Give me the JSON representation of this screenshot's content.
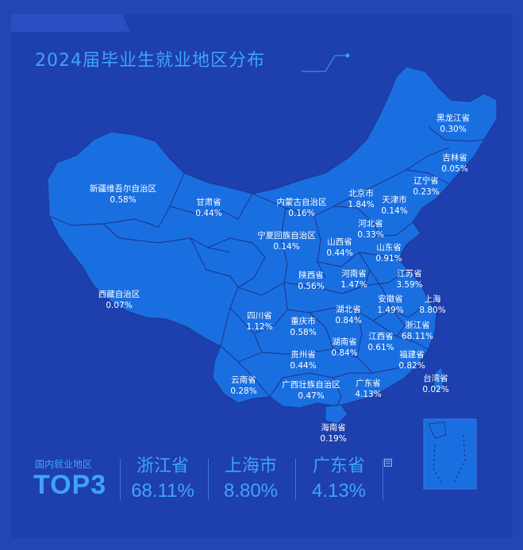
{
  "title": "2024届毕业生就业地区分布",
  "colors": {
    "background": "#2346b4",
    "panel": "#1e3fae",
    "land": "#1a6fe0",
    "border": "#1b3c9a",
    "accent": "#3fa2ff",
    "label": "#ffffff"
  },
  "regions": [
    {
      "name": "黑龙江省",
      "value": "0.30%"
    },
    {
      "name": "吉林省",
      "value": "0.05%"
    },
    {
      "name": "辽宁省",
      "value": "0.23%"
    },
    {
      "name": "新疆维吾尔自治区",
      "value": "0.58%"
    },
    {
      "name": "甘肃省",
      "value": "0.44%"
    },
    {
      "name": "内蒙古自治区",
      "value": "0.16%"
    },
    {
      "name": "北京市",
      "value": "1.84%"
    },
    {
      "name": "天津市",
      "value": "0.14%"
    },
    {
      "name": "河北省",
      "value": "0.33%"
    },
    {
      "name": "宁夏回族自治区",
      "value": "0.14%"
    },
    {
      "name": "山西省",
      "value": "0.44%"
    },
    {
      "name": "山东省",
      "value": "0.91%"
    },
    {
      "name": "陕西省",
      "value": "0.56%"
    },
    {
      "name": "河南省",
      "value": "1.47%"
    },
    {
      "name": "江苏省",
      "value": "3.59%"
    },
    {
      "name": "西藏自治区",
      "value": "0.07%"
    },
    {
      "name": "安徽省",
      "value": "1.49%"
    },
    {
      "name": "上海",
      "value": "8.80%"
    },
    {
      "name": "四川省",
      "value": "1.12%"
    },
    {
      "name": "重庆市",
      "value": "0.58%"
    },
    {
      "name": "湖北省",
      "value": "0.84%"
    },
    {
      "name": "浙江省",
      "value": "68.11%"
    },
    {
      "name": "湖南省",
      "value": "0.84%"
    },
    {
      "name": "江西省",
      "value": "0.61%"
    },
    {
      "name": "贵州省",
      "value": "0.44%"
    },
    {
      "name": "福建省",
      "value": "0.82%"
    },
    {
      "name": "云南省",
      "value": "0.28%"
    },
    {
      "name": "广西壮族自治区",
      "value": "0.47%"
    },
    {
      "name": "广东省",
      "value": "4.13%"
    },
    {
      "name": "台湾省",
      "value": "0.02%"
    },
    {
      "name": "海南省",
      "value": "0.19%"
    }
  ],
  "top3": {
    "heading": "国内就业地区",
    "big_label": "TOP3",
    "items": [
      {
        "name": "浙江省",
        "value": "68.11%"
      },
      {
        "name": "上海市",
        "value": "8.80%"
      },
      {
        "name": "广东省",
        "value": "4.13%"
      }
    ]
  }
}
